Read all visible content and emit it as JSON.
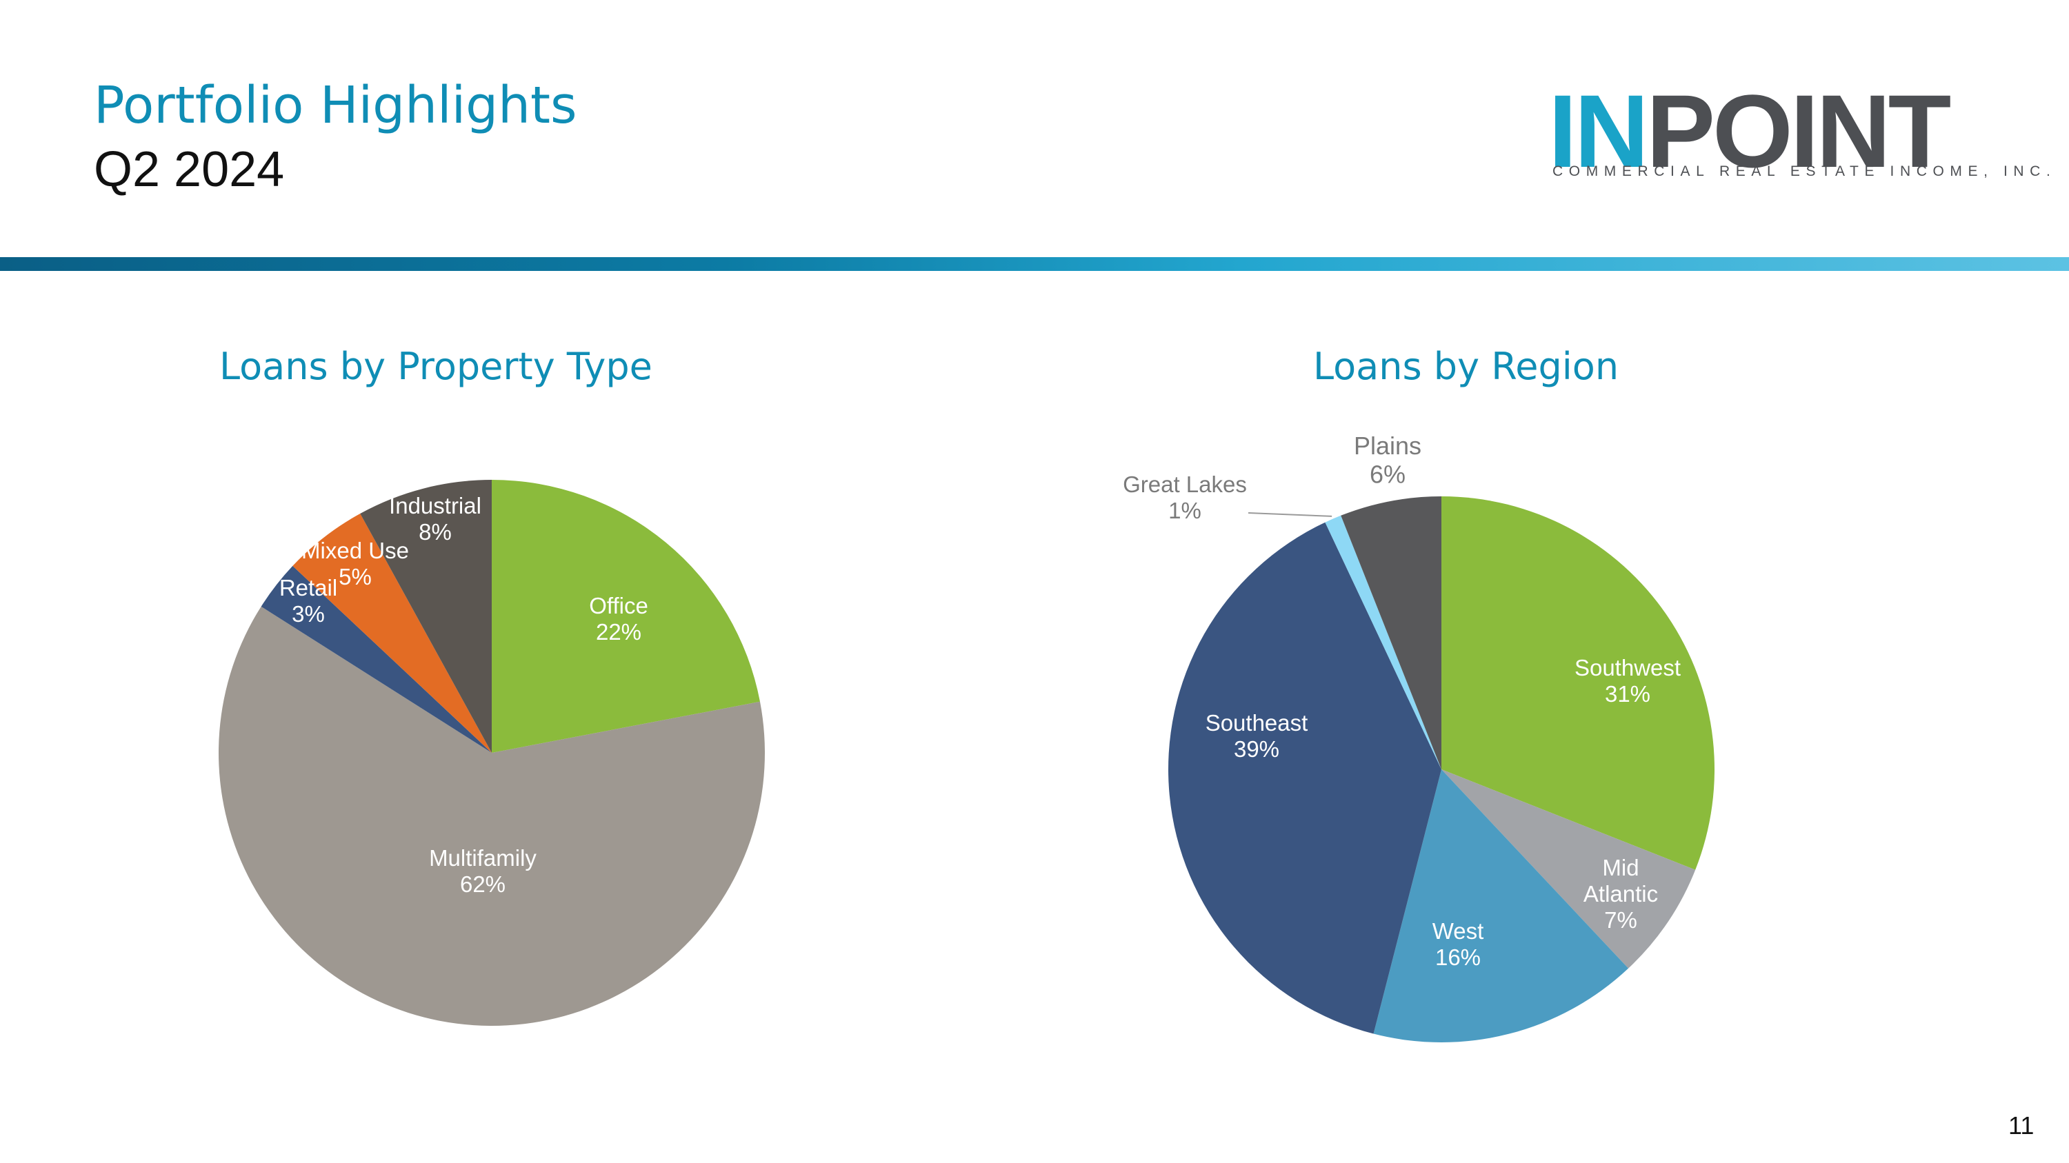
{
  "header": {
    "title": "Portfolio Highlights",
    "subtitle": "Q2 2024"
  },
  "logo": {
    "word_part1": "IN",
    "word_part2": "POINT",
    "tagline": "COMMERCIAL REAL ESTATE INCOME, INC."
  },
  "page_number": "11",
  "colors": {
    "accent_blue": "#0f8db5",
    "office_green": "#8bbb3c",
    "multifamily_gray": "#9e9891",
    "retail_navy": "#3a5581",
    "mixed_use_orange": "#e36c24",
    "industrial_dark": "#5b5651",
    "mid_atlantic_gray": "#a2a4a8",
    "west_blue": "#4c9cc2",
    "great_lakes_lightblue": "#8ed8f5",
    "plains_dark": "#58585a"
  },
  "chart_data": [
    {
      "type": "pie",
      "title": "Loans by Property Type",
      "slices": [
        {
          "name": "Office",
          "value": 22,
          "label": "22%",
          "color": "#8bbb3c",
          "label_color": "#ffffff"
        },
        {
          "name": "Multifamily",
          "value": 62,
          "label": "62%",
          "color": "#9e9891",
          "label_color": "#ffffff"
        },
        {
          "name": "Retail",
          "value": 3,
          "label": "3%",
          "color": "#3a5581",
          "label_color": "#ffffff"
        },
        {
          "name": "Mixed Use",
          "value": 5,
          "label": "5%",
          "color": "#e36c24",
          "label_color": "#ffffff"
        },
        {
          "name": "Industrial",
          "value": 8,
          "label": "8%",
          "color": "#5b5651",
          "label_color": "#ffffff"
        }
      ]
    },
    {
      "type": "pie",
      "title": "Loans by Region",
      "slices": [
        {
          "name": "Southwest",
          "value": 31,
          "label": "31%",
          "color": "#8bbb3c",
          "label_color": "#ffffff"
        },
        {
          "name": "Mid Atlantic",
          "value": 7,
          "label": "7%",
          "color": "#a2a4a8",
          "label_color": "#ffffff"
        },
        {
          "name": "West",
          "value": 16,
          "label": "16%",
          "color": "#4c9cc2",
          "label_color": "#ffffff"
        },
        {
          "name": "Southeast",
          "value": 39,
          "label": "39%",
          "color": "#3a5581",
          "label_color": "#ffffff"
        },
        {
          "name": "Great Lakes",
          "value": 1,
          "label": "1%",
          "color": "#8ed8f5",
          "label_color": "#7a7a7a"
        },
        {
          "name": "Plains",
          "value": 6,
          "label": "6%",
          "color": "#58585a",
          "label_color": "#7a7a7a"
        }
      ]
    }
  ]
}
